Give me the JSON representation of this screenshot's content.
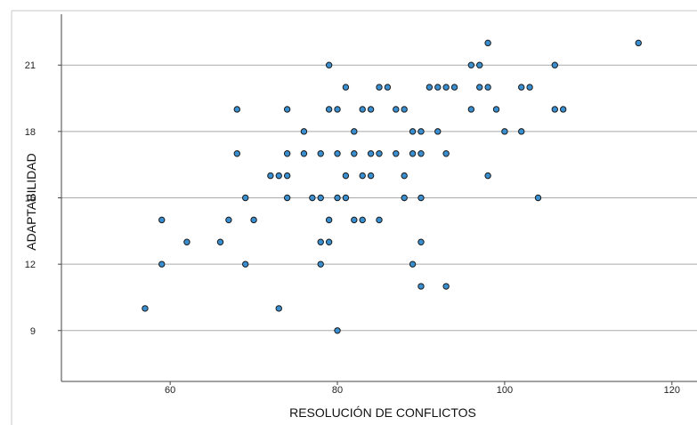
{
  "chart_data": {
    "type": "scatter",
    "title": "",
    "xlabel": "RESOLUCIÓN DE CONFLICTOS",
    "ylabel": "ADAPTABILIDAD",
    "xlim": [
      47,
      123
    ],
    "ylim": [
      6.7,
      23.3
    ],
    "xticks": [
      60,
      80,
      100,
      120
    ],
    "yticks": [
      9,
      12,
      15,
      18,
      21
    ],
    "grid": "horizontal",
    "legend": "none",
    "point_color": "#3a8fd1",
    "point_edge_color": "#1a1a1a",
    "points": [
      {
        "x": 57,
        "y": 10
      },
      {
        "x": 59,
        "y": 14
      },
      {
        "x": 59,
        "y": 12
      },
      {
        "x": 62,
        "y": 13
      },
      {
        "x": 66,
        "y": 13
      },
      {
        "x": 67,
        "y": 14
      },
      {
        "x": 68,
        "y": 19
      },
      {
        "x": 68,
        "y": 17
      },
      {
        "x": 69,
        "y": 15
      },
      {
        "x": 69,
        "y": 12
      },
      {
        "x": 70,
        "y": 14
      },
      {
        "x": 72,
        "y": 16
      },
      {
        "x": 73,
        "y": 16
      },
      {
        "x": 73,
        "y": 10
      },
      {
        "x": 74,
        "y": 19
      },
      {
        "x": 74,
        "y": 17
      },
      {
        "x": 74,
        "y": 16
      },
      {
        "x": 74,
        "y": 15
      },
      {
        "x": 76,
        "y": 18
      },
      {
        "x": 76,
        "y": 17
      },
      {
        "x": 77,
        "y": 15
      },
      {
        "x": 78,
        "y": 17
      },
      {
        "x": 78,
        "y": 15
      },
      {
        "x": 78,
        "y": 13
      },
      {
        "x": 78,
        "y": 12
      },
      {
        "x": 79,
        "y": 21
      },
      {
        "x": 79,
        "y": 19
      },
      {
        "x": 79,
        "y": 14
      },
      {
        "x": 79,
        "y": 13
      },
      {
        "x": 80,
        "y": 19
      },
      {
        "x": 80,
        "y": 17
      },
      {
        "x": 80,
        "y": 15
      },
      {
        "x": 80,
        "y": 9
      },
      {
        "x": 81,
        "y": 20
      },
      {
        "x": 81,
        "y": 16
      },
      {
        "x": 81,
        "y": 15
      },
      {
        "x": 82,
        "y": 18
      },
      {
        "x": 82,
        "y": 17
      },
      {
        "x": 82,
        "y": 14
      },
      {
        "x": 83,
        "y": 19
      },
      {
        "x": 83,
        "y": 16
      },
      {
        "x": 83,
        "y": 14
      },
      {
        "x": 84,
        "y": 19
      },
      {
        "x": 84,
        "y": 17
      },
      {
        "x": 84,
        "y": 16
      },
      {
        "x": 85,
        "y": 20
      },
      {
        "x": 85,
        "y": 17
      },
      {
        "x": 85,
        "y": 14
      },
      {
        "x": 86,
        "y": 20
      },
      {
        "x": 87,
        "y": 19
      },
      {
        "x": 87,
        "y": 17
      },
      {
        "x": 88,
        "y": 19
      },
      {
        "x": 88,
        "y": 16
      },
      {
        "x": 88,
        "y": 15
      },
      {
        "x": 89,
        "y": 18
      },
      {
        "x": 89,
        "y": 17
      },
      {
        "x": 89,
        "y": 12
      },
      {
        "x": 90,
        "y": 18
      },
      {
        "x": 90,
        "y": 17
      },
      {
        "x": 90,
        "y": 15
      },
      {
        "x": 90,
        "y": 13
      },
      {
        "x": 90,
        "y": 11
      },
      {
        "x": 91,
        "y": 20
      },
      {
        "x": 92,
        "y": 20
      },
      {
        "x": 92,
        "y": 18
      },
      {
        "x": 93,
        "y": 20
      },
      {
        "x": 93,
        "y": 17
      },
      {
        "x": 93,
        "y": 11
      },
      {
        "x": 94,
        "y": 20
      },
      {
        "x": 96,
        "y": 21
      },
      {
        "x": 96,
        "y": 19
      },
      {
        "x": 97,
        "y": 21
      },
      {
        "x": 97,
        "y": 20
      },
      {
        "x": 98,
        "y": 22
      },
      {
        "x": 98,
        "y": 20
      },
      {
        "x": 98,
        "y": 16
      },
      {
        "x": 99,
        "y": 19
      },
      {
        "x": 100,
        "y": 18
      },
      {
        "x": 102,
        "y": 20
      },
      {
        "x": 102,
        "y": 18
      },
      {
        "x": 103,
        "y": 20
      },
      {
        "x": 104,
        "y": 15
      },
      {
        "x": 106,
        "y": 21
      },
      {
        "x": 106,
        "y": 19
      },
      {
        "x": 107,
        "y": 19
      },
      {
        "x": 116,
        "y": 22
      }
    ]
  }
}
